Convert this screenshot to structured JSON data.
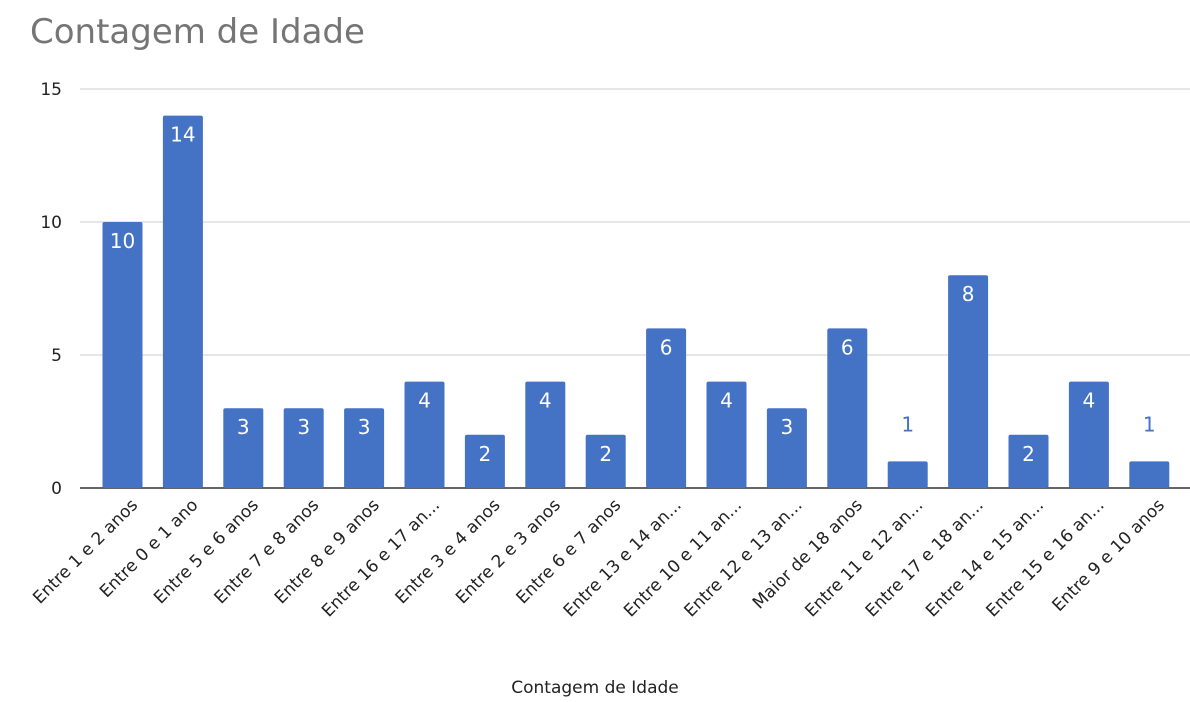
{
  "chart_data": {
    "type": "bar",
    "title": "Contagem de Idade",
    "xlabel": "Contagem de Idade",
    "ylabel": "",
    "ylim": [
      0,
      15
    ],
    "yticks": [
      0,
      5,
      10,
      15
    ],
    "grid": true,
    "legend": "none",
    "bar_color": "#4472C4",
    "label_color_inside": "#ffffff",
    "label_color_outside": "#4472C4",
    "categories": [
      "Entre 1 e 2 anos",
      "Entre 0 e 1 ano",
      "Entre 5 e 6 anos",
      "Entre 7 e 8 anos",
      "Entre 8 e 9 anos",
      "Entre 16 e 17 an...",
      "Entre 3 e 4 anos",
      "Entre 2 e 3 anos",
      "Entre 6 e 7 anos",
      "Entre 13 e 14 an...",
      "Entre 10 e 11 an...",
      "Entre 12 e 13 an...",
      "Maior de 18 anos",
      "Entre 11 e 12 an...",
      "Entre 17 e 18 an...",
      "Entre 14 e 15 an...",
      "Entre 15 e 16 an...",
      "Entre 9 e 10 anos"
    ],
    "values": [
      10,
      14,
      3,
      3,
      3,
      4,
      2,
      4,
      2,
      6,
      4,
      3,
      6,
      1,
      8,
      2,
      4,
      1
    ]
  }
}
